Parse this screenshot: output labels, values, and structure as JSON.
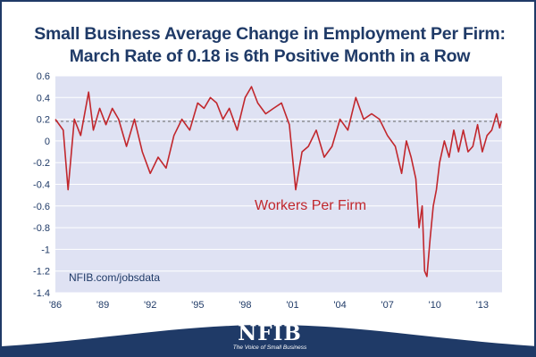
{
  "title_line1": "Small Business Average Change in Employment Per Firm:",
  "title_line2": "March Rate of 0.18 is 6th Positive Month in a Row",
  "logo": {
    "text": "NFIB",
    "tagline": "The Voice of Small Business"
  },
  "colors": {
    "frame": "#1f3a67",
    "plot_bg": "#dfe2f3",
    "line": "#c1272d",
    "reference": "#666666",
    "text": "#1f3a67"
  },
  "chart_data": {
    "type": "line",
    "title": "Small Business Average Change in Employment Per Firm: March Rate of 0.18 is 6th Positive Month in a Row",
    "xlabel": "",
    "ylabel": "",
    "ylim": [
      -1.4,
      0.6
    ],
    "yticks": [
      0.6,
      0.4,
      0.2,
      0,
      -0.2,
      -0.4,
      -0.6,
      -0.8,
      -1,
      -1.2,
      -1.4
    ],
    "ytick_labels": [
      "0.6",
      "0.4",
      "0.2",
      "0",
      "-0.2",
      "-0.4",
      "-0.6",
      "-0.8",
      "-1",
      "-1.2",
      "-1.4"
    ],
    "xlim": [
      1986,
      2014.25
    ],
    "xticks": [
      1986,
      1989,
      1992,
      1995,
      1998,
      2001,
      2004,
      2007,
      2010,
      2013
    ],
    "xtick_labels": [
      "'86",
      "'89",
      "'92",
      "'95",
      "'98",
      "'01",
      "'04",
      "'07",
      "'10",
      "'13"
    ],
    "grid": "horizontal",
    "reference_line": 0.18,
    "series": [
      {
        "name": "Workers Per Firm",
        "x": [
          1986.0,
          1986.5,
          1986.8,
          1987.2,
          1987.6,
          1988.1,
          1988.4,
          1988.8,
          1989.2,
          1989.6,
          1990.0,
          1990.5,
          1991.0,
          1991.5,
          1992.0,
          1992.5,
          1993.0,
          1993.5,
          1994.0,
          1994.5,
          1995.0,
          1995.4,
          1995.8,
          1996.2,
          1996.6,
          1997.0,
          1997.5,
          1998.0,
          1998.4,
          1998.8,
          1999.3,
          1999.8,
          2000.3,
          2000.8,
          2001.2,
          2001.6,
          2002.0,
          2002.5,
          2003.0,
          2003.5,
          2004.0,
          2004.5,
          2005.0,
          2005.5,
          2006.0,
          2006.5,
          2007.0,
          2007.5,
          2007.9,
          2008.2,
          2008.5,
          2008.8,
          2009.0,
          2009.2,
          2009.35,
          2009.5,
          2009.7,
          2009.9,
          2010.1,
          2010.3,
          2010.6,
          2010.9,
          2011.2,
          2011.5,
          2011.8,
          2012.1,
          2012.4,
          2012.7,
          2013.0,
          2013.3,
          2013.6,
          2013.9,
          2014.1,
          2014.2
        ],
        "y": [
          0.2,
          0.1,
          -0.45,
          0.2,
          0.05,
          0.45,
          0.1,
          0.3,
          0.15,
          0.3,
          0.2,
          -0.05,
          0.2,
          -0.1,
          -0.3,
          -0.15,
          -0.25,
          0.05,
          0.2,
          0.1,
          0.35,
          0.3,
          0.4,
          0.35,
          0.2,
          0.3,
          0.1,
          0.4,
          0.5,
          0.35,
          0.25,
          0.3,
          0.35,
          0.15,
          -0.45,
          -0.1,
          -0.05,
          0.1,
          -0.15,
          -0.05,
          0.2,
          0.1,
          0.4,
          0.2,
          0.25,
          0.2,
          0.05,
          -0.05,
          -0.3,
          0.0,
          -0.15,
          -0.35,
          -0.8,
          -0.6,
          -1.2,
          -1.25,
          -0.9,
          -0.6,
          -0.45,
          -0.2,
          0.0,
          -0.15,
          0.1,
          -0.1,
          0.1,
          -0.1,
          -0.05,
          0.15,
          -0.1,
          0.05,
          0.1,
          0.25,
          0.12,
          0.18
        ]
      }
    ],
    "annotations": [
      "Workers Per Firm",
      "NFIB.com/jobsdata"
    ]
  }
}
